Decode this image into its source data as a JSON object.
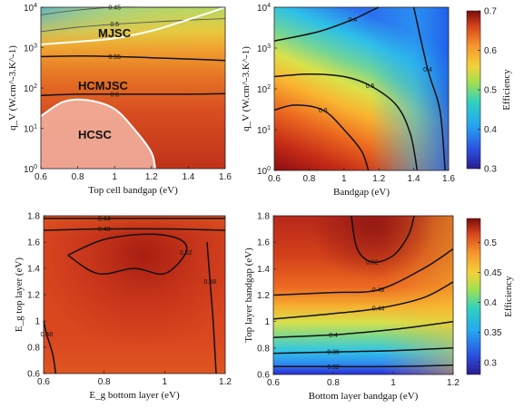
{
  "chart_data": [
    {
      "type": "heatmap",
      "panel": "top-left",
      "xlabel": "Top cell bandgap (eV)",
      "ylabel": "q_V (W.cm^-3.K^-1)",
      "xlim": [
        0.6,
        1.6
      ],
      "ylim": [
        1,
        10000
      ],
      "y_scale": "log",
      "x_ticks": [
        "0.6",
        "0.8",
        "1",
        "1.2",
        "1.4",
        "1.6"
      ],
      "y_ticks": [
        "10^0",
        "10^1",
        "10^2",
        "10^3",
        "10^4"
      ],
      "regions": [
        "MJSC",
        "HCMJSC",
        "HCSC"
      ],
      "contours": [
        {
          "level": "0.45",
          "x": [
            0.6,
            0.8,
            1.0,
            1.2,
            1.4,
            1.6
          ],
          "y": [
            6500,
            8500,
            10000,
            10000,
            10000,
            10000
          ]
        },
        {
          "level": "0.5",
          "x": [
            0.6,
            0.8,
            1.0,
            1.2,
            1.4,
            1.6
          ],
          "y": [
            2500,
            3200,
            3800,
            4300,
            4800,
            5200
          ]
        },
        {
          "level": "0.55",
          "x": [
            0.6,
            0.8,
            1.0,
            1.2,
            1.4,
            1.6
          ],
          "y": [
            600,
            620,
            600,
            560,
            520,
            480
          ]
        },
        {
          "level": "0.6",
          "x": [
            0.6,
            0.8,
            1.0,
            1.2,
            1.4,
            1.6
          ],
          "y": [
            65,
            70,
            70,
            70,
            70,
            72
          ]
        }
      ],
      "boundaries": [
        {
          "name": "MJSC",
          "x": [
            0.6,
            0.8,
            1.0,
            1.2,
            1.35,
            1.5,
            1.6
          ],
          "y": [
            1200,
            1400,
            1700,
            2600,
            4200,
            7000,
            10000
          ]
        },
        {
          "name": "HCSC",
          "x": [
            0.6,
            0.72,
            0.85,
            1.0,
            1.12,
            1.2,
            1.22
          ],
          "y": [
            20,
            45,
            50,
            30,
            8,
            2.5,
            1
          ]
        }
      ]
    },
    {
      "type": "heatmap",
      "panel": "top-right",
      "xlabel": "Bandgap (eV)",
      "ylabel": "q_V (W.cm^-3.K^-1)",
      "xlim": [
        0.6,
        1.6
      ],
      "ylim": [
        1,
        10000
      ],
      "y_scale": "log",
      "x_ticks": [
        "0.6",
        "0.8",
        "1",
        "1.2",
        "1.4",
        "1.6"
      ],
      "y_ticks": [
        "10^0",
        "10^1",
        "10^2",
        "10^3",
        "10^4"
      ],
      "colorbar": {
        "label": "Efficiency",
        "range": [
          0.3,
          0.7
        ],
        "ticks": [
          "0.3",
          "0.4",
          "0.5",
          "0.6",
          "0.7"
        ]
      },
      "contours": [
        {
          "level": "0.4",
          "x": [
            0.6,
            0.85,
            1.05,
            1.15,
            1.2
          ],
          "y": [
            1500,
            2500,
            5000,
            8000,
            10000
          ]
        },
        {
          "level": "0.5",
          "x": [
            0.6,
            0.8,
            1.0,
            1.15,
            1.3,
            1.38,
            1.42
          ],
          "y": [
            200,
            230,
            200,
            120,
            40,
            8,
            1
          ]
        },
        {
          "level": "0.6",
          "x": [
            0.6,
            0.72,
            0.88,
            1.0,
            1.1,
            1.14
          ],
          "y": [
            30,
            40,
            30,
            10,
            3,
            1
          ]
        },
        {
          "level": "0.4",
          "x": [
            1.4,
            1.48,
            1.55,
            1.58
          ],
          "y": [
            10000,
            300,
            30,
            1
          ]
        }
      ]
    },
    {
      "type": "heatmap",
      "panel": "bottom-left",
      "xlabel": "E_g bottom layer (eV)",
      "ylabel": "E_g top layer (eV)",
      "xlim": [
        0.6,
        1.2
      ],
      "ylim": [
        0.6,
        1.8
      ],
      "x_ticks": [
        "0.6",
        "0.8",
        "1",
        "1.2"
      ],
      "y_ticks": [
        "0.6",
        "0.8",
        "1",
        "1.2",
        "1.4",
        "1.6",
        "1.8"
      ],
      "contours": [
        {
          "level": "0.44",
          "x": [
            0.6,
            0.8,
            1.0,
            1.2
          ],
          "y": [
            1.78,
            1.78,
            1.78,
            1.78
          ]
        },
        {
          "level": "0.48",
          "x": [
            0.6,
            0.8,
            1.0,
            1.2
          ],
          "y": [
            1.69,
            1.7,
            1.7,
            1.69
          ]
        },
        {
          "level": "0.52",
          "x": [
            0.68,
            0.8,
            0.95,
            1.05,
            1.07,
            1.0,
            0.9,
            0.78,
            0.68
          ],
          "y": [
            1.5,
            1.62,
            1.66,
            1.62,
            1.52,
            1.36,
            1.4,
            1.36,
            1.5
          ]
        },
        {
          "level": "0.48",
          "x": [
            1.14,
            1.15,
            1.16,
            1.17
          ],
          "y": [
            1.6,
            1.3,
            1.0,
            0.6
          ]
        },
        {
          "level": "0.48",
          "x": [
            0.6,
            0.61,
            0.63,
            0.64
          ],
          "y": [
            1.0,
            0.9,
            0.75,
            0.6
          ]
        }
      ]
    },
    {
      "type": "heatmap",
      "panel": "bottom-right",
      "xlabel": "Bottom layer bandgap (eV)",
      "ylabel": "Top layer bandgap (eV)",
      "xlim": [
        0.6,
        1.2
      ],
      "ylim": [
        0.6,
        1.8
      ],
      "x_ticks": [
        "0.6",
        "0.8",
        "1",
        "1.2"
      ],
      "y_ticks": [
        "0.6",
        "0.8",
        "1",
        "1.2",
        "1.4",
        "1.6",
        "1.8"
      ],
      "colorbar": {
        "label": "Efficiency",
        "range": [
          0.28,
          0.54
        ],
        "ticks": [
          "0.3",
          "0.35",
          "0.4",
          "0.45",
          "0.5"
        ]
      },
      "contours": [
        {
          "level": "0.52",
          "x": [
            0.86,
            0.88,
            0.93,
            1.0,
            1.05,
            1.07
          ],
          "y": [
            1.8,
            1.55,
            1.45,
            1.5,
            1.65,
            1.8
          ]
        },
        {
          "level": "0.48",
          "x": [
            0.6,
            0.8,
            0.95,
            1.1,
            1.2
          ],
          "y": [
            1.2,
            1.22,
            1.24,
            1.4,
            1.55
          ]
        },
        {
          "level": "0.44",
          "x": [
            0.6,
            0.8,
            0.95,
            1.1,
            1.2
          ],
          "y": [
            1.02,
            1.06,
            1.1,
            1.18,
            1.3
          ]
        },
        {
          "level": "0.4",
          "x": [
            0.6,
            0.8,
            1.0,
            1.2
          ],
          "y": [
            0.88,
            0.9,
            0.94,
            1.0
          ]
        },
        {
          "level": "0.36",
          "x": [
            0.6,
            0.8,
            1.0,
            1.2
          ],
          "y": [
            0.76,
            0.77,
            0.78,
            0.8
          ]
        },
        {
          "level": "0.32",
          "x": [
            0.6,
            0.8,
            1.0,
            1.2
          ],
          "y": [
            0.66,
            0.66,
            0.66,
            0.67
          ]
        }
      ]
    }
  ]
}
